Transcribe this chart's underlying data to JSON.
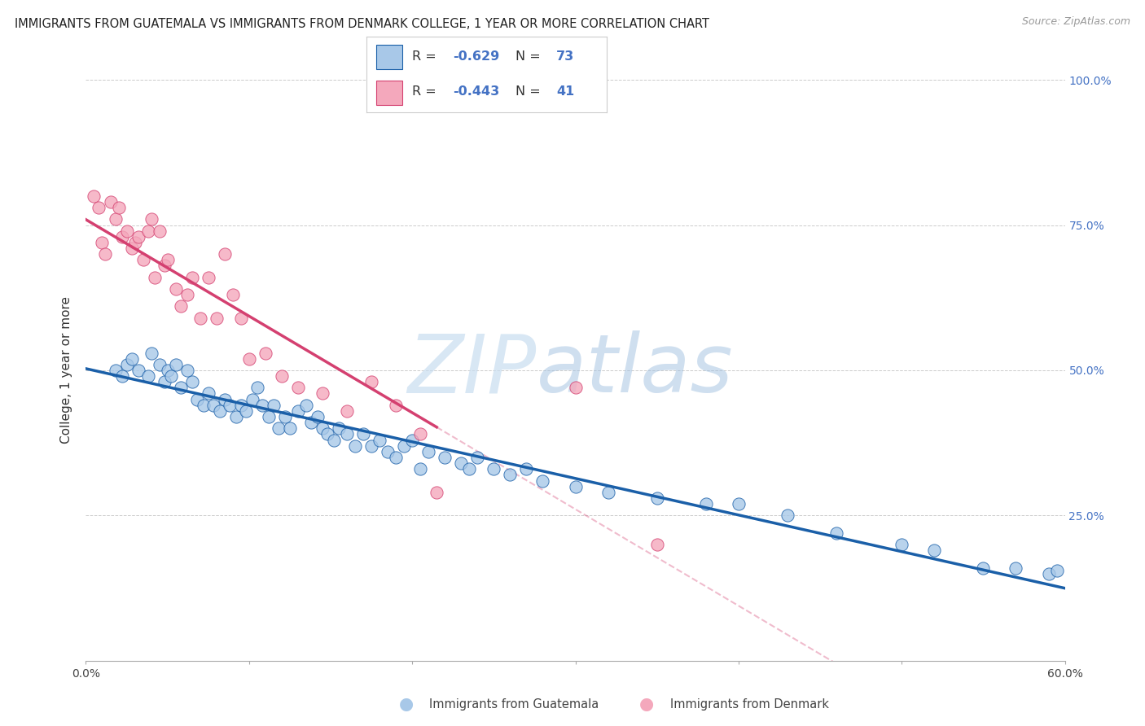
{
  "title": "IMMIGRANTS FROM GUATEMALA VS IMMIGRANTS FROM DENMARK COLLEGE, 1 YEAR OR MORE CORRELATION CHART",
  "source": "Source: ZipAtlas.com",
  "ylabel": "College, 1 year or more",
  "legend_label1": "Immigrants from Guatemala",
  "legend_label2": "Immigrants from Denmark",
  "R1": -0.629,
  "N1": 73,
  "R2": -0.443,
  "N2": 41,
  "color1": "#a8c8e8",
  "color2": "#f4a8bc",
  "line_color1": "#1a5fa8",
  "line_color2": "#d44070",
  "watermark_zip": "ZIP",
  "watermark_atlas": "atlas",
  "xlim": [
    0.0,
    0.6
  ],
  "ylim": [
    0.0,
    1.0
  ],
  "guatemala_x": [
    0.018,
    0.022,
    0.025,
    0.028,
    0.032,
    0.038,
    0.04,
    0.045,
    0.048,
    0.05,
    0.052,
    0.055,
    0.058,
    0.062,
    0.065,
    0.068,
    0.072,
    0.075,
    0.078,
    0.082,
    0.085,
    0.088,
    0.092,
    0.095,
    0.098,
    0.102,
    0.105,
    0.108,
    0.112,
    0.115,
    0.118,
    0.122,
    0.125,
    0.13,
    0.135,
    0.138,
    0.142,
    0.145,
    0.148,
    0.152,
    0.155,
    0.16,
    0.165,
    0.17,
    0.175,
    0.18,
    0.185,
    0.19,
    0.195,
    0.2,
    0.205,
    0.21,
    0.22,
    0.23,
    0.235,
    0.24,
    0.25,
    0.26,
    0.27,
    0.28,
    0.3,
    0.32,
    0.35,
    0.38,
    0.4,
    0.43,
    0.46,
    0.5,
    0.52,
    0.55,
    0.57,
    0.59,
    0.595
  ],
  "guatemala_y": [
    0.5,
    0.49,
    0.51,
    0.52,
    0.5,
    0.49,
    0.53,
    0.51,
    0.48,
    0.5,
    0.49,
    0.51,
    0.47,
    0.5,
    0.48,
    0.45,
    0.44,
    0.46,
    0.44,
    0.43,
    0.45,
    0.44,
    0.42,
    0.44,
    0.43,
    0.45,
    0.47,
    0.44,
    0.42,
    0.44,
    0.4,
    0.42,
    0.4,
    0.43,
    0.44,
    0.41,
    0.42,
    0.4,
    0.39,
    0.38,
    0.4,
    0.39,
    0.37,
    0.39,
    0.37,
    0.38,
    0.36,
    0.35,
    0.37,
    0.38,
    0.33,
    0.36,
    0.35,
    0.34,
    0.33,
    0.35,
    0.33,
    0.32,
    0.33,
    0.31,
    0.3,
    0.29,
    0.28,
    0.27,
    0.27,
    0.25,
    0.22,
    0.2,
    0.19,
    0.16,
    0.16,
    0.15,
    0.155
  ],
  "denmark_x": [
    0.005,
    0.008,
    0.01,
    0.012,
    0.015,
    0.018,
    0.02,
    0.022,
    0.025,
    0.028,
    0.03,
    0.032,
    0.035,
    0.038,
    0.04,
    0.042,
    0.045,
    0.048,
    0.05,
    0.055,
    0.058,
    0.062,
    0.065,
    0.07,
    0.075,
    0.08,
    0.085,
    0.09,
    0.095,
    0.1,
    0.11,
    0.12,
    0.13,
    0.145,
    0.16,
    0.175,
    0.19,
    0.205,
    0.215,
    0.3,
    0.35
  ],
  "denmark_y": [
    0.8,
    0.78,
    0.72,
    0.7,
    0.79,
    0.76,
    0.78,
    0.73,
    0.74,
    0.71,
    0.72,
    0.73,
    0.69,
    0.74,
    0.76,
    0.66,
    0.74,
    0.68,
    0.69,
    0.64,
    0.61,
    0.63,
    0.66,
    0.59,
    0.66,
    0.59,
    0.7,
    0.63,
    0.59,
    0.52,
    0.53,
    0.49,
    0.47,
    0.46,
    0.43,
    0.48,
    0.44,
    0.39,
    0.29,
    0.47,
    0.2
  ],
  "tick_fontsize": 10,
  "axis_fontsize": 11,
  "title_fontsize": 10.5,
  "source_fontsize": 9
}
